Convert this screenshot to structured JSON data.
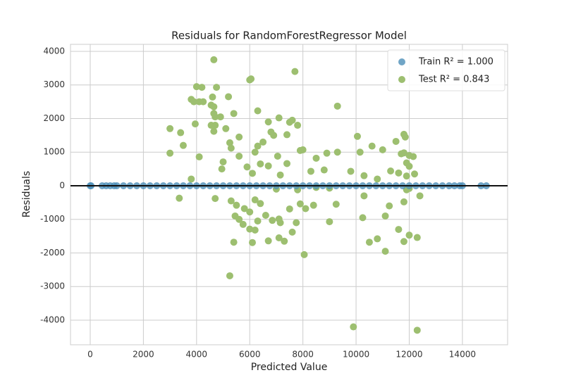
{
  "chart_data": {
    "type": "scatter",
    "title": "Residuals for RandomForestRegressor Model",
    "x_label": "Predicted Value",
    "y_label": "Residuals",
    "xlim": [
      -742,
      15700
    ],
    "ylim": [
      -4733,
      4209
    ],
    "xticks": [
      0,
      2000,
      4000,
      6000,
      8000,
      10000,
      12000,
      14000
    ],
    "yticks": [
      -4000,
      -3000,
      -2000,
      -1000,
      0,
      1000,
      2000,
      3000,
      4000
    ],
    "grid": true,
    "hline": 0,
    "legend": "upper right",
    "series": [
      {
        "name": "Train R² = 1.000",
        "color": "#4c8fb8",
        "x": [
          0,
          30,
          450,
          600,
          750,
          900,
          1000,
          1250,
          1500,
          1750,
          2000,
          2250,
          2500,
          2750,
          3000,
          3250,
          3500,
          3750,
          4000,
          4250,
          4500,
          4750,
          5000,
          5250,
          5500,
          5750,
          6000,
          6250,
          6500,
          6750,
          7000,
          7250,
          7500,
          7750,
          8000,
          8250,
          8500,
          8750,
          9000,
          9250,
          9500,
          9750,
          10000,
          10250,
          10500,
          10750,
          11000,
          11250,
          11500,
          11750,
          12000,
          12250,
          12500,
          12750,
          13000,
          13250,
          13500,
          13700,
          13900,
          14000,
          14700,
          14900
        ],
        "values": [
          0,
          0,
          0,
          0,
          0,
          0,
          0,
          0,
          0,
          0,
          0,
          0,
          0,
          0,
          0,
          0,
          0,
          0,
          0,
          0,
          0,
          0,
          0,
          0,
          0,
          0,
          0,
          0,
          0,
          0,
          0,
          0,
          0,
          0,
          0,
          0,
          0,
          0,
          0,
          0,
          0,
          0,
          0,
          0,
          0,
          0,
          0,
          0,
          0,
          0,
          0,
          0,
          0,
          0,
          0,
          0,
          0,
          0,
          0,
          0,
          0,
          0
        ]
      },
      {
        "name": "Test R² = 0.843",
        "color": "#9dbf70",
        "x": [
          4650,
          7700,
          6000,
          6050,
          9300,
          4000,
          4200,
          4750,
          5200,
          4600,
          3800,
          3900,
          4100,
          4250,
          4550,
          4650,
          4650,
          4700,
          4900,
          5400,
          6300,
          7100,
          7500,
          7800,
          7600,
          6700,
          4550,
          4700,
          3950,
          4650,
          5100,
          3000,
          3400,
          5250,
          5600,
          6500,
          6800,
          6900,
          3500,
          3000,
          4100,
          5300,
          6300,
          6200,
          7050,
          7400,
          7900,
          8000,
          8500,
          8900,
          9300,
          10050,
          10150,
          10600,
          11000,
          11500,
          11800,
          11850,
          11700,
          11800,
          12000,
          12150,
          11900,
          12000,
          9800,
          8300,
          8800,
          7400,
          7150,
          6400,
          6700,
          5000,
          4950,
          5600,
          5900,
          6100,
          3800,
          10300,
          10800,
          11300,
          11600,
          11900,
          12200,
          12000,
          11900,
          10300,
          9000,
          8400,
          8100,
          7900,
          7500,
          7100,
          7150,
          6850,
          6600,
          6400,
          6200,
          6000,
          5800,
          5500,
          5300,
          5450,
          5600,
          5750,
          6000,
          6200,
          6300,
          6100,
          6700,
          7100,
          7300,
          7600,
          7750,
          8050,
          5400,
          5250,
          3350,
          4700,
          9000,
          9250,
          10250,
          10500,
          10800,
          11100,
          11250,
          11100,
          11600,
          11800,
          12000,
          12300,
          12400,
          11800,
          9900,
          12300,
          7800,
          7000,
          8500
        ],
        "values": [
          3750,
          3400,
          3150,
          3180,
          2370,
          2950,
          2930,
          2930,
          2650,
          2640,
          2570,
          2500,
          2500,
          2500,
          2400,
          2350,
          2150,
          2050,
          2050,
          2150,
          2230,
          2020,
          1890,
          1800,
          1950,
          1900,
          1800,
          1800,
          1840,
          1620,
          1700,
          1700,
          1580,
          1280,
          1450,
          1300,
          1600,
          1500,
          1200,
          970,
          860,
          1120,
          1180,
          1000,
          880,
          1520,
          1050,
          1070,
          820,
          970,
          1000,
          1470,
          1000,
          1180,
          1070,
          1320,
          1530,
          1450,
          950,
          980,
          900,
          870,
          680,
          580,
          430,
          430,
          470,
          660,
          320,
          650,
          590,
          710,
          500,
          880,
          560,
          370,
          200,
          300,
          200,
          440,
          380,
          290,
          350,
          -80,
          -120,
          -300,
          -70,
          -580,
          -680,
          -540,
          -690,
          -990,
          -1100,
          -1030,
          -880,
          -530,
          -420,
          -780,
          -680,
          -580,
          -450,
          -900,
          -1000,
          -1150,
          -1290,
          -1320,
          -1050,
          -1690,
          -1640,
          -1550,
          -1650,
          -1380,
          -1100,
          -2050,
          -1680,
          -2680,
          -370,
          -380,
          -1070,
          -550,
          -950,
          -1680,
          -1580,
          -1950,
          -600,
          -900,
          -1300,
          -1660,
          -1470,
          -1540,
          -300,
          -480,
          -4200,
          -4300,
          -120,
          -100,
          -50
        ]
      }
    ]
  }
}
